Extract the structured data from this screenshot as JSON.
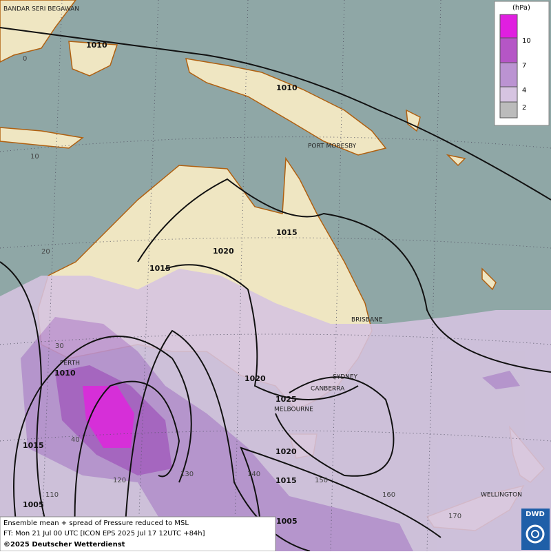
{
  "places": [
    "BANDAR SERI BEGAWAN",
    "PORT MORESBY",
    "BRISBANE",
    "PERTH",
    "SYDNEY",
    "CANBERRA",
    "MELBOURNE",
    "WELLINGTON"
  ],
  "isobar_labels": [
    "1010",
    "1010",
    "1015",
    "1020",
    "1015",
    "1010",
    "1020",
    "1025",
    "1015",
    "1020",
    "1015",
    "1005",
    "1005"
  ],
  "grid_labels": [
    "0",
    "10",
    "20",
    "30",
    "40",
    "110",
    "120",
    "130",
    "140",
    "150",
    "160",
    "170"
  ],
  "legend": {
    "unit": "(hPa)",
    "levels": [
      "10",
      "7",
      "4",
      "2"
    ]
  },
  "footer": {
    "line1": "Ensemble mean + spread of Pressure reduced to MSL",
    "line2": "FT: Mon 21 Jul 00 UTC [ICON EPS 2025 Jul 17 12UTC +84h]",
    "line3": "©2025 Deutscher Wetterdienst"
  },
  "logo": "DWD"
}
